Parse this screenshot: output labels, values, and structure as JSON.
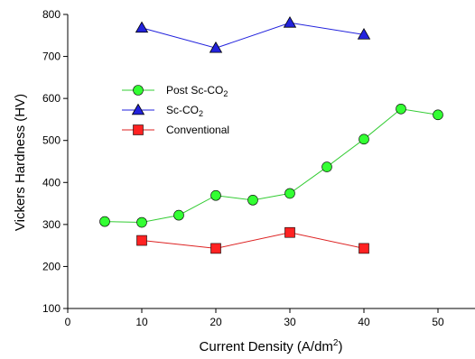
{
  "chart_data": {
    "type": "line",
    "title": "",
    "xlabel": "Current Density (A/dm",
    "xlabel_sup": "2",
    "xlabel_end": ")",
    "ylabel": "Vickers Hardness (HV)",
    "xlim": [
      0,
      55
    ],
    "ylim": [
      100,
      800
    ],
    "x_ticks": [
      0,
      10,
      20,
      30,
      40,
      50
    ],
    "y_ticks": [
      100,
      200,
      300,
      400,
      500,
      600,
      700,
      800
    ],
    "grid": false,
    "legend_position": "upper-left",
    "series": [
      {
        "name": "Post Sc-CO",
        "name_sub": "2",
        "marker": "circle",
        "color": "#33ff33",
        "line_color": "#33cc33",
        "x": [
          5,
          10,
          15,
          20,
          25,
          30,
          35,
          40,
          45,
          50
        ],
        "y": [
          307,
          305,
          322,
          369,
          358,
          374,
          437,
          503,
          575,
          561
        ]
      },
      {
        "name": "Sc-CO",
        "name_sub": "2",
        "marker": "triangle",
        "color": "#2222dd",
        "line_color": "#2222dd",
        "x": [
          10,
          20,
          30,
          40
        ],
        "y": [
          768,
          720,
          780,
          752
        ]
      },
      {
        "name": "Conventional",
        "name_sub": "",
        "marker": "square",
        "color": "#ff2222",
        "line_color": "#dd2222",
        "x": [
          10,
          20,
          30,
          40
        ],
        "y": [
          262,
          243,
          281,
          243
        ]
      }
    ]
  }
}
